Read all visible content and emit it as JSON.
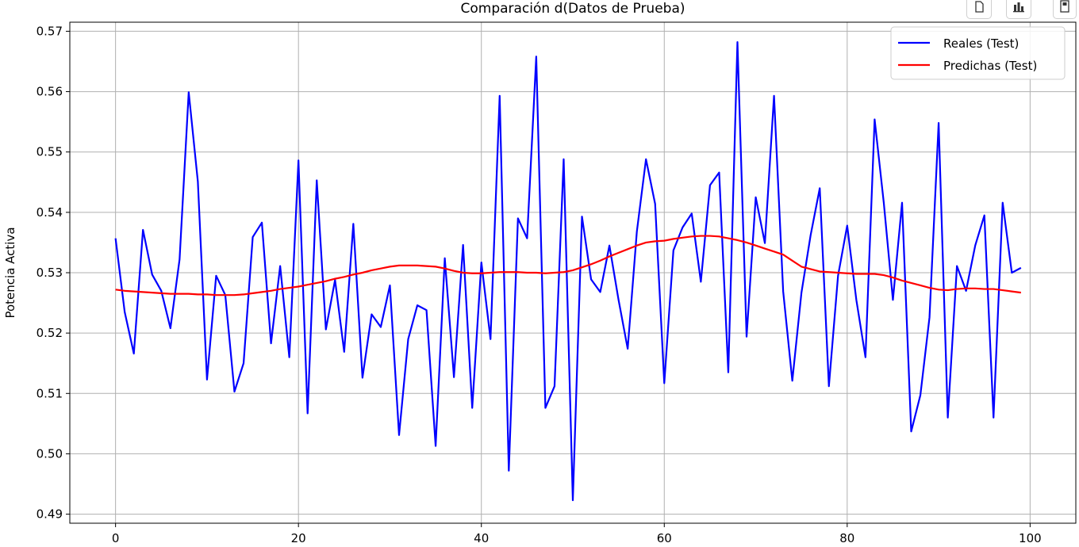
{
  "chart_data": {
    "type": "line",
    "title": "Comparación d(Datos de Prueba)",
    "xlabel": "",
    "ylabel": "Potencia Activa",
    "xlim": [
      -5,
      105
    ],
    "ylim": [
      0.4885,
      0.5715
    ],
    "xticks": [
      0,
      20,
      40,
      60,
      80,
      100
    ],
    "yticks": [
      0.49,
      0.5,
      0.51,
      0.52,
      0.53,
      0.54,
      0.55,
      0.56,
      0.57
    ],
    "ytick_labels": [
      "0.49",
      "0.50",
      "0.51",
      "0.52",
      "0.53",
      "0.54",
      "0.55",
      "0.56",
      "0.57"
    ],
    "grid": true,
    "legend_position": "top-right",
    "series": [
      {
        "name": "Reales (Test)",
        "color": "#0000ff",
        "values": [
          0.5357,
          0.5235,
          0.5166,
          0.5371,
          0.5297,
          0.527,
          0.5208,
          0.5322,
          0.5599,
          0.5451,
          0.5123,
          0.5295,
          0.5263,
          0.5103,
          0.515,
          0.5359,
          0.5383,
          0.5183,
          0.5311,
          0.516,
          0.5486,
          0.5067,
          0.5453,
          0.5206,
          0.5288,
          0.5169,
          0.5381,
          0.5126,
          0.5231,
          0.521,
          0.5279,
          0.5031,
          0.519,
          0.5246,
          0.5238,
          0.5013,
          0.5324,
          0.5127,
          0.5346,
          0.5076,
          0.5317,
          0.519,
          0.5593,
          0.4972,
          0.539,
          0.5357,
          0.5658,
          0.5076,
          0.5112,
          0.5488,
          0.4923,
          0.5393,
          0.5289,
          0.5268,
          0.5345,
          0.5255,
          0.5174,
          0.5368,
          0.5488,
          0.5414,
          0.5117,
          0.5337,
          0.5375,
          0.5398,
          0.5285,
          0.5445,
          0.5466,
          0.5135,
          0.5682,
          0.5194,
          0.5425,
          0.5349,
          0.5593,
          0.5269,
          0.5121,
          0.5267,
          0.5362,
          0.544,
          0.5112,
          0.5295,
          0.5378,
          0.5255,
          0.516,
          0.5554,
          0.5416,
          0.5255,
          0.5416,
          0.5037,
          0.5097,
          0.5226,
          0.5548,
          0.506,
          0.5311,
          0.527,
          0.5345,
          0.5395,
          0.506,
          0.5416,
          0.53,
          0.5308
        ]
      },
      {
        "name": "Predichas (Test)",
        "color": "#ff0000",
        "values": [
          0.5272,
          0.527,
          0.5269,
          0.5268,
          0.5267,
          0.5266,
          0.5265,
          0.5265,
          0.5265,
          0.5264,
          0.5264,
          0.5263,
          0.5263,
          0.5263,
          0.5264,
          0.5266,
          0.5268,
          0.527,
          0.5273,
          0.5275,
          0.5277,
          0.528,
          0.5283,
          0.5286,
          0.529,
          0.5293,
          0.5297,
          0.53,
          0.5304,
          0.5307,
          0.531,
          0.5312,
          0.5312,
          0.5312,
          0.5311,
          0.531,
          0.5307,
          0.5303,
          0.53,
          0.5299,
          0.5299,
          0.53,
          0.5301,
          0.5301,
          0.5301,
          0.53,
          0.53,
          0.5299,
          0.53,
          0.5301,
          0.5304,
          0.5309,
          0.5314,
          0.532,
          0.5327,
          0.5333,
          0.5339,
          0.5345,
          0.535,
          0.5352,
          0.5353,
          0.5356,
          0.5358,
          0.536,
          0.5361,
          0.5361,
          0.536,
          0.5357,
          0.5354,
          0.535,
          0.5345,
          0.534,
          0.5335,
          0.533,
          0.532,
          0.531,
          0.5306,
          0.5302,
          0.5301,
          0.53,
          0.5299,
          0.5298,
          0.5298,
          0.5298,
          0.5296,
          0.5292,
          0.5287,
          0.5283,
          0.5279,
          0.5275,
          0.5272,
          0.5271,
          0.5273,
          0.5274,
          0.5274,
          0.5273,
          0.5273,
          0.5271,
          0.5269,
          0.5267
        ]
      }
    ]
  },
  "toolbar": {
    "copy_icon": "copy-icon",
    "chart_icon": "bar-chart-icon",
    "export_icon": "export-icon"
  }
}
